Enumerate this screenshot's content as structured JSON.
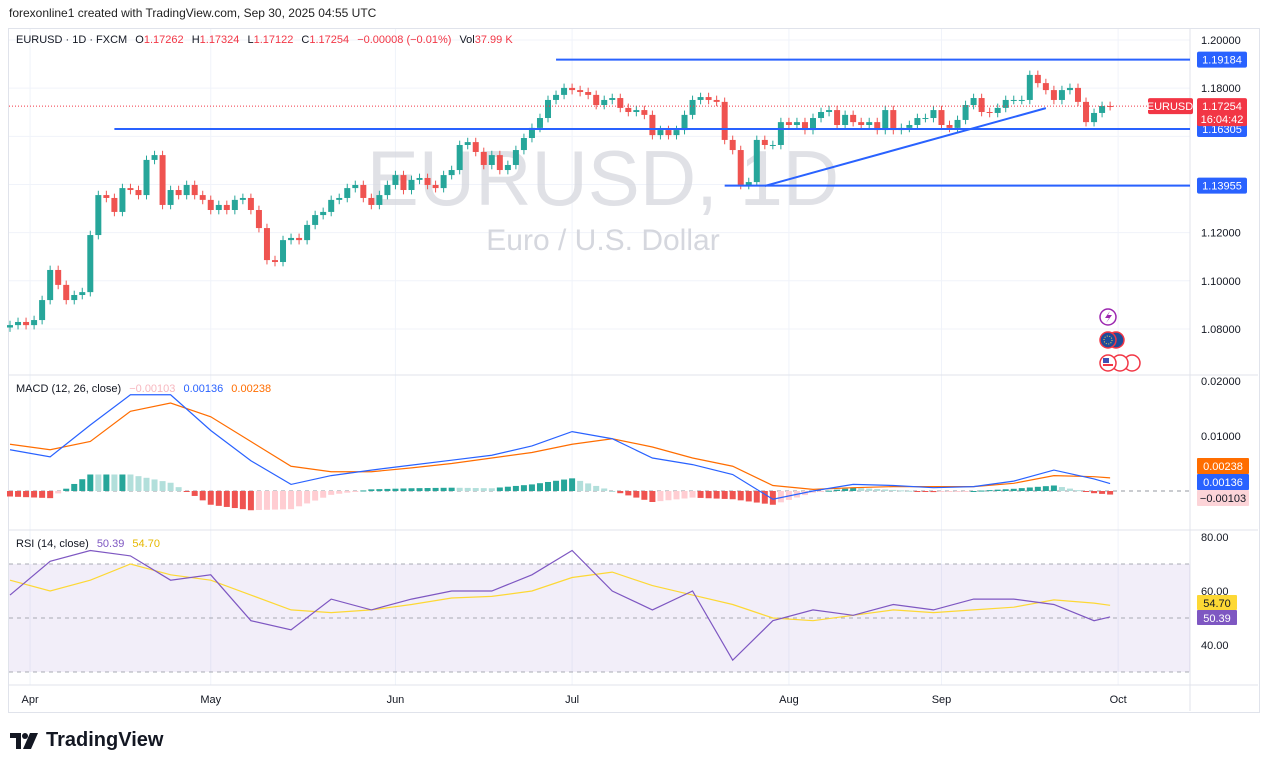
{
  "credit": "forexonline1 created with TradingView.com, Sep 30, 2025 04:55 UTC",
  "legend": {
    "symbol": "EURUSD · 1D · FXCM",
    "o_label": "O",
    "o": "1.17262",
    "h_label": "H",
    "h": "1.17324",
    "l_label": "L",
    "l": "1.17122",
    "c_label": "C",
    "c": "1.17254",
    "change": "−0.00008 (−0.01%)",
    "vol_label": "Vol",
    "vol": "37.99 K"
  },
  "watermark": {
    "title": "EURUSD, 1D",
    "subtitle": "Euro / U.S. Dollar"
  },
  "macd_legend": {
    "title": "MACD (12, 26, close)",
    "hist": "−0.00103",
    "macd": "0.00136",
    "signal": "0.00238"
  },
  "rsi_legend": {
    "title": "RSI (14, close)",
    "rsi": "50.39",
    "ma": "54.70"
  },
  "symbol_tag": "EURUSD",
  "countdown": "16:04:42",
  "event_icons": [
    "lightning-icon",
    "eu-flag-icon",
    "us-flag-icon"
  ],
  "brand": "TradingView",
  "colors": {
    "up": "#26a69a",
    "down": "#ef5350",
    "level": "#2962ff",
    "macd": "#2962ff",
    "signal": "#ff6d00",
    "rsi": "#7e57c2",
    "rsi_ma": "#fdd835",
    "price_tag": "#f23645"
  },
  "chart_data": [
    {
      "type": "candlestick",
      "symbol": "EURUSD",
      "interval": "1D",
      "ylim": [
        1.07,
        1.205
      ],
      "y_ticks": [
        "1.20000",
        "1.18000",
        "1.16000",
        "1.14000",
        "1.12000",
        "1.10000",
        "1.08000"
      ],
      "y_tick_labels_shown": [
        "1.20000",
        "1.18000",
        "1.12000",
        "1.10000",
        "1.08000"
      ],
      "x_ticks": [
        {
          "label": "Apr",
          "bar": 2.5
        },
        {
          "label": "May",
          "bar": 25
        },
        {
          "label": "Jun",
          "bar": 48
        },
        {
          "label": "Jul",
          "bar": 70
        },
        {
          "label": "Aug",
          "bar": 97
        },
        {
          "label": "Sep",
          "bar": 116
        },
        {
          "label": "Oct",
          "bar": 138
        }
      ],
      "closes": [
        1.0816,
        1.0829,
        1.0816,
        1.0837,
        1.092,
        1.1045,
        1.0983,
        1.092,
        1.0941,
        1.0953,
        1.119,
        1.1356,
        1.1344,
        1.1286,
        1.1385,
        1.1377,
        1.1356,
        1.1502,
        1.1522,
        1.1315,
        1.1377,
        1.1356,
        1.1398,
        1.1356,
        1.1336,
        1.1294,
        1.1315,
        1.1294,
        1.1336,
        1.1344,
        1.1294,
        1.1219,
        1.1086,
        1.1078,
        1.1169,
        1.1178,
        1.1169,
        1.1232,
        1.1273,
        1.1286,
        1.1336,
        1.1344,
        1.1385,
        1.1398,
        1.1344,
        1.1315,
        1.1356,
        1.1398,
        1.1439,
        1.1377,
        1.1419,
        1.1427,
        1.1398,
        1.1385,
        1.1439,
        1.146,
        1.1564,
        1.1576,
        1.1535,
        1.1481,
        1.1522,
        1.146,
        1.1481,
        1.1543,
        1.1593,
        1.1635,
        1.1676,
        1.1751,
        1.1772,
        1.1801,
        1.1792,
        1.1784,
        1.1772,
        1.173,
        1.1751,
        1.1759,
        1.1718,
        1.1701,
        1.1709,
        1.1689,
        1.1605,
        1.1626,
        1.1605,
        1.1626,
        1.1689,
        1.1751,
        1.1763,
        1.1751,
        1.1743,
        1.1585,
        1.1543,
        1.1398,
        1.141,
        1.1585,
        1.1564,
        1.1564,
        1.1659,
        1.1647,
        1.1659,
        1.1626,
        1.1676,
        1.1701,
        1.1709,
        1.1647,
        1.1689,
        1.1659,
        1.1647,
        1.1659,
        1.1626,
        1.1709,
        1.1626,
        1.1635,
        1.1647,
        1.1676,
        1.1676,
        1.1709,
        1.1647,
        1.1635,
        1.1668,
        1.173,
        1.1759,
        1.1701,
        1.1697,
        1.1718,
        1.1751,
        1.1751,
        1.1751,
        1.1855,
        1.1821,
        1.1792,
        1.1751,
        1.1792,
        1.1801,
        1.1743,
        1.1659,
        1.1697,
        1.1726,
        1.17254
      ],
      "last_price": "1.17254",
      "horizontal_levels": [
        {
          "label": "1.19184",
          "value": 1.19184,
          "from_bar": 68
        },
        {
          "label": "1.16305",
          "value": 1.16305,
          "from_bar": 13
        },
        {
          "label": "1.13955",
          "value": 1.13955,
          "from_bar": 89
        }
      ],
      "trendline": {
        "from": {
          "bar": 94,
          "value": 1.1394
        },
        "to": {
          "bar": 129,
          "value": 1.1717
        }
      }
    },
    {
      "type": "line",
      "title": "MACD (12, 26, close)",
      "ylim": [
        -0.005,
        0.021
      ],
      "y_ticks": [
        "0.02000",
        "0.01000"
      ],
      "sample_every_bars": 5,
      "series": [
        {
          "name": "MACD",
          "values": [
            0.0075,
            0.0062,
            0.012,
            0.0175,
            0.0175,
            0.011,
            0.0055,
            0.0012,
            0.0028,
            0.0038,
            0.0047,
            0.0056,
            0.0065,
            0.0082,
            0.0108,
            0.0095,
            0.006,
            0.0048,
            0.003,
            -0.0015,
            0.0,
            0.0012,
            0.001,
            0.0006,
            0.0008,
            0.0018,
            0.0038,
            0.0022,
            0.00136
          ]
        },
        {
          "name": "Signal",
          "values": [
            0.0085,
            0.0075,
            0.009,
            0.0145,
            0.016,
            0.0135,
            0.009,
            0.0045,
            0.0035,
            0.0035,
            0.0042,
            0.005,
            0.006,
            0.007,
            0.0085,
            0.0095,
            0.008,
            0.006,
            0.0045,
            0.001,
            0.0003,
            0.0006,
            0.0008,
            0.0008,
            0.0008,
            0.0014,
            0.0028,
            0.0026,
            0.00238
          ]
        }
      ],
      "last_values": {
        "signal": "0.00238",
        "macd": "0.00136",
        "histogram": "-0.00103"
      }
    },
    {
      "type": "line",
      "title": "RSI (14, close)",
      "ylim": [
        25,
        85
      ],
      "y_ticks": [
        "80.00",
        "60.00",
        "40.00"
      ],
      "bands": [
        70,
        50,
        30
      ],
      "sample_every_bars": 5,
      "series": [
        {
          "name": "RSI",
          "values": [
            58.5,
            71,
            75,
            73,
            64,
            66,
            49,
            45.6,
            57,
            53,
            57,
            60,
            60,
            66,
            75,
            60,
            53,
            60,
            34.4,
            49,
            53,
            51,
            55,
            53,
            57,
            57,
            55,
            49,
            50.39
          ]
        },
        {
          "name": "RSI-based MA",
          "values": [
            64,
            60,
            64,
            70,
            66,
            64,
            58.5,
            53,
            52,
            53,
            55,
            57.4,
            58,
            60,
            65,
            67,
            62,
            58.5,
            55,
            50,
            49,
            51,
            53,
            52,
            53,
            54,
            56.7,
            55.5,
            54.7
          ]
        }
      ],
      "last_values": {
        "rsi": "50.39",
        "ma": "54.70"
      }
    }
  ]
}
